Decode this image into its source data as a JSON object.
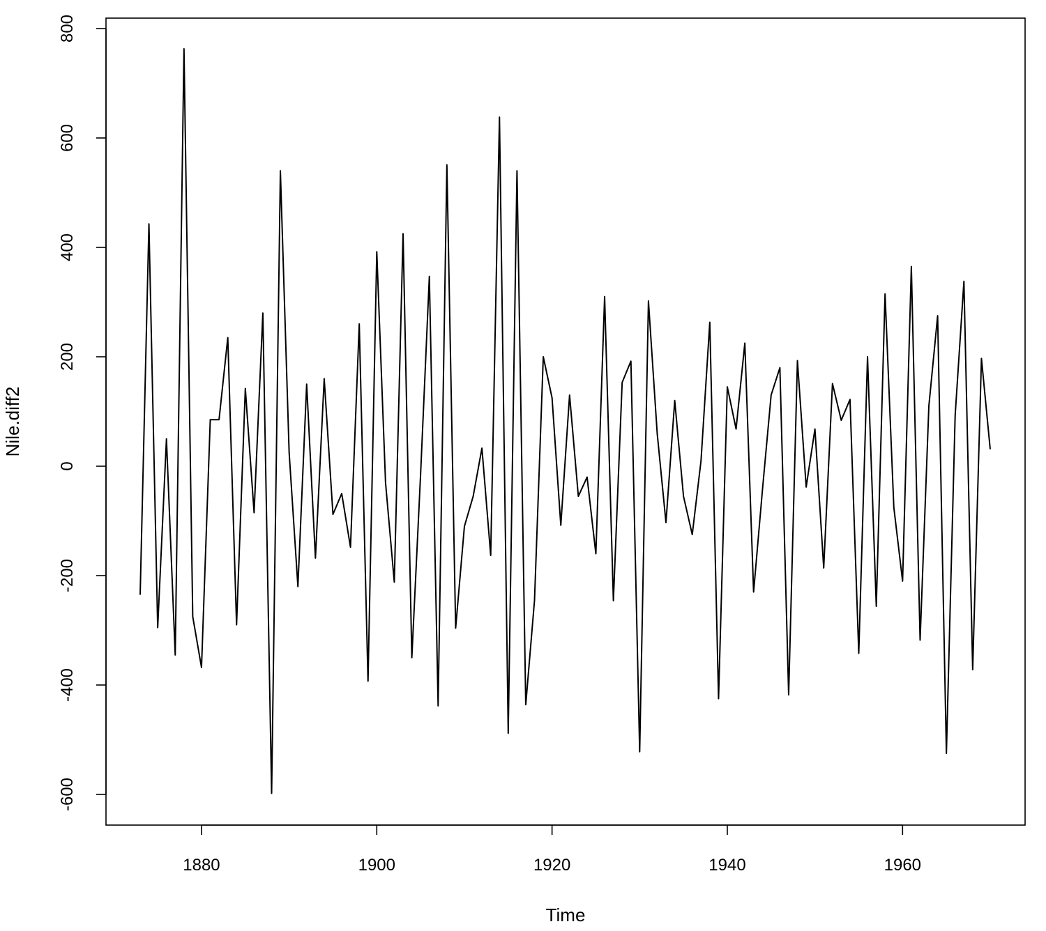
{
  "chart_data": {
    "type": "line",
    "title": "",
    "xlabel": "Time",
    "ylabel": "Nile.diff2",
    "xlim": [
      1873,
      1970
    ],
    "ylim": [
      -600,
      800
    ],
    "xticks": [
      1880,
      1900,
      1920,
      1940,
      1960
    ],
    "yticks": [
      -600,
      -400,
      -200,
      0,
      200,
      400,
      600,
      800
    ],
    "grid": false,
    "legend": "none",
    "line_color": "#000000",
    "series": [
      {
        "x": [
          1873,
          1874,
          1875,
          1876,
          1877,
          1878,
          1879,
          1880,
          1881,
          1882,
          1883,
          1884,
          1885,
          1886,
          1887,
          1888,
          1889,
          1890,
          1891,
          1892,
          1893,
          1894,
          1895,
          1896,
          1897,
          1898,
          1899,
          1900,
          1901,
          1902,
          1903,
          1904,
          1905,
          1906,
          1907,
          1908,
          1909,
          1910,
          1911,
          1912,
          1913,
          1914,
          1915,
          1916,
          1917,
          1918,
          1919,
          1920,
          1921,
          1922,
          1923,
          1924,
          1925,
          1926,
          1927,
          1928,
          1929,
          1930,
          1931,
          1932,
          1933,
          1934,
          1935,
          1936,
          1937,
          1938,
          1939,
          1940,
          1941,
          1942,
          1943,
          1944,
          1945,
          1946,
          1947,
          1948,
          1949,
          1950,
          1951,
          1952,
          1953,
          1954,
          1955,
          1956,
          1957,
          1958,
          1959,
          1960,
          1961,
          1962,
          1963,
          1964,
          1965,
          1966,
          1967,
          1968,
          1969,
          1970
        ],
        "values": [
          -235,
          443,
          -295,
          50,
          -345,
          763,
          -275,
          -368,
          85,
          85,
          235,
          -290,
          142,
          -85,
          280,
          -598,
          540,
          25,
          -220,
          150,
          -168,
          160,
          -88,
          -50,
          -148,
          260,
          -393,
          392,
          -30,
          -212,
          425,
          -350,
          -15,
          347,
          -438,
          551,
          -296,
          -110,
          -55,
          33,
          -163,
          638,
          -488,
          540,
          -436,
          -245,
          200,
          125,
          -108,
          130,
          -55,
          -20,
          -160,
          310,
          -246,
          153,
          192,
          -522,
          302,
          60,
          -103,
          120,
          -55,
          -125,
          10,
          263,
          -425,
          145,
          68,
          225,
          -230,
          -45,
          130,
          180,
          -418,
          193,
          -38,
          68,
          -186,
          151,
          84,
          122,
          -342,
          200,
          -256,
          315,
          -75,
          -210,
          365,
          -318,
          110,
          275,
          -525,
          93,
          338,
          -372,
          197,
          31
        ]
      }
    ]
  }
}
